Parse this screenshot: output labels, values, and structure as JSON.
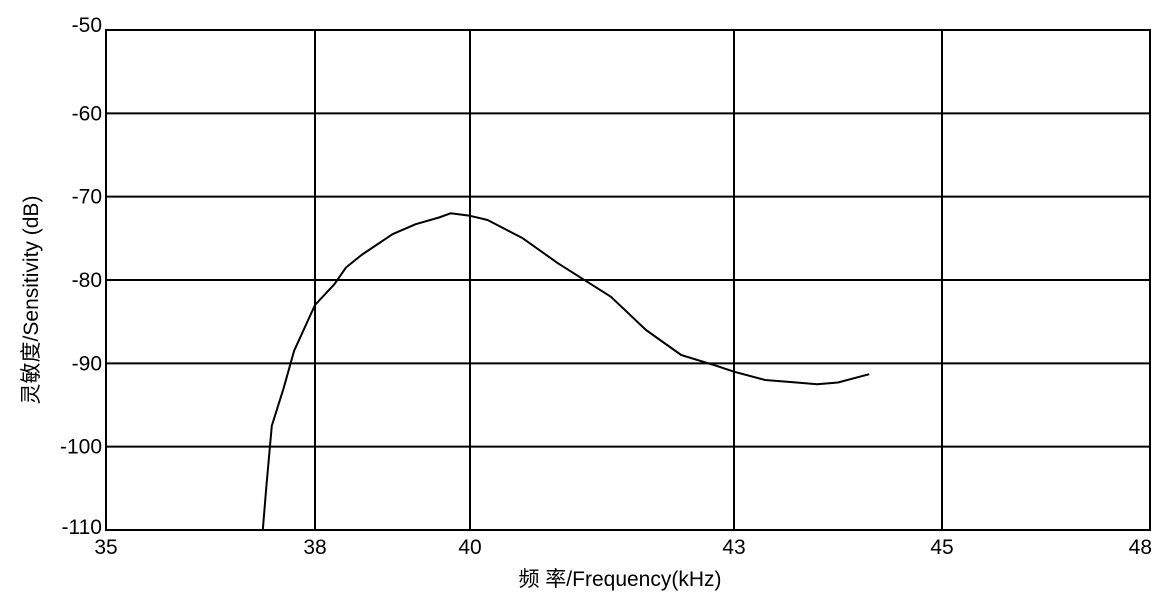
{
  "chart_data": {
    "type": "line",
    "title": "",
    "xlabel": "频 率/Frequency(kHz)",
    "ylabel": "灵敏度/Sensitivity (dB)",
    "xticks": [
      35,
      38,
      40,
      43,
      45,
      48
    ],
    "xtick_labels": [
      "35",
      "38",
      "40",
      "43",
      "45",
      "48"
    ],
    "yticks": [
      -50,
      -60,
      -70,
      -80,
      -90,
      -100,
      -110
    ],
    "ytick_labels": [
      "-50",
      "-60",
      "-70",
      "-80",
      "-90",
      "-100",
      "-110"
    ],
    "xlim": [
      35,
      48
    ],
    "ylim": [
      -110,
      -50
    ],
    "grid": true,
    "legend": "none",
    "line_color": "#000000",
    "series": [
      {
        "x": [
          37.25,
          37.3,
          37.38,
          37.55,
          37.7,
          38.0,
          38.25,
          38.4,
          38.6,
          39.0,
          39.3,
          39.6,
          39.75,
          40.0,
          40.2,
          40.6,
          41.0,
          41.6,
          42.0,
          42.4,
          42.8,
          43.0,
          43.3,
          43.6,
          43.8,
          44.0,
          44.3
        ],
        "y": [
          -110,
          -105,
          -97.5,
          -93,
          -88.5,
          -83,
          -80.5,
          -78.5,
          -77,
          -74.5,
          -73.3,
          -72.5,
          -72.0,
          -72.3,
          -72.8,
          -75,
          -78,
          -82,
          -86,
          -89,
          -90.3,
          -91,
          -92.0,
          -92.3,
          -92.5,
          -92.3,
          -91.3
        ]
      }
    ]
  }
}
